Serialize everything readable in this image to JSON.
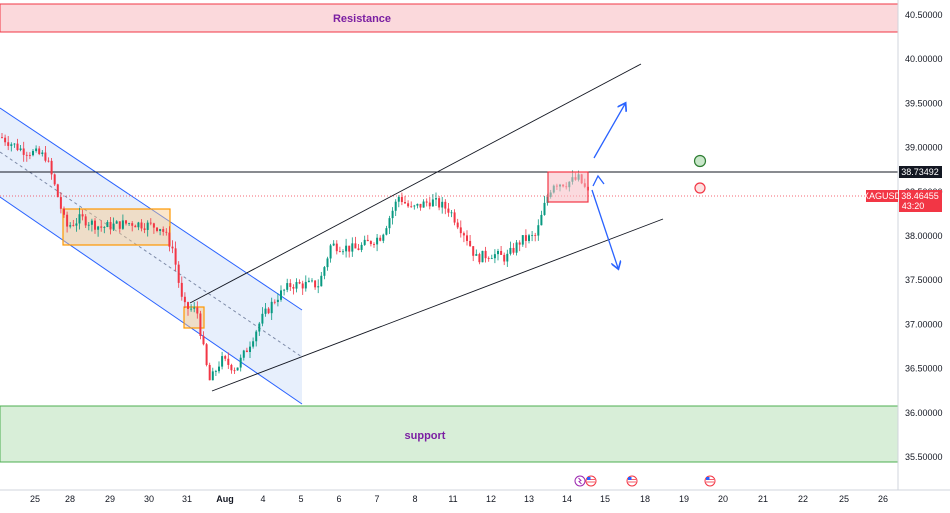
{
  "chart_data": {
    "type": "candlestick",
    "symbol": "XAGUSD",
    "price_axis": {
      "range": [
        35.35,
        40.55
      ],
      "ticks": [
        "40.50000",
        "40.00000",
        "39.50000",
        "39.00000",
        "38.50000",
        "38.00000",
        "37.50000",
        "37.00000",
        "36.50000",
        "36.00000",
        "35.50000"
      ]
    },
    "time_axis": {
      "ticks": [
        "25",
        "28",
        "29",
        "30",
        "31",
        "Aug",
        "4",
        "5",
        "6",
        "7",
        "8",
        "11",
        "12",
        "13",
        "14",
        "15",
        "18",
        "19",
        "20",
        "21",
        "22",
        "25",
        "26"
      ]
    },
    "resistance_zone": {
      "label": "Resistance",
      "from": 40.23,
      "to": 40.55,
      "color": "#f23645"
    },
    "support_zone": {
      "label": "support",
      "from": 35.48,
      "to": 36.08,
      "color": "#4caf50"
    },
    "horizontal_level": {
      "label": "38.73492",
      "value": 38.73492
    },
    "current_price": {
      "symbol_label": "XAGUSD",
      "label": "38.46455",
      "countdown": "43:20",
      "value": 38.46455,
      "color": "#f23645"
    },
    "grid": false,
    "colors": {
      "up": "#089981",
      "down": "#f23645",
      "channel": "#2962ff",
      "trendline": "#131722",
      "arrow": "#2962ff"
    }
  }
}
